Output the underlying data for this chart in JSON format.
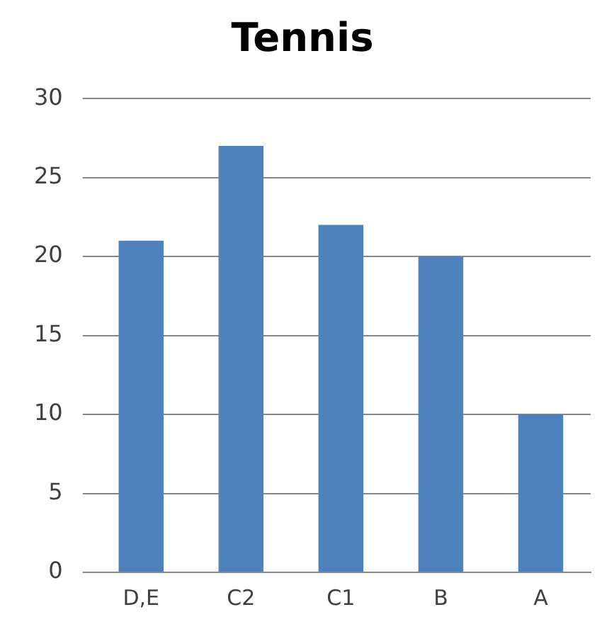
{
  "chart_data": {
    "type": "bar",
    "title": "Tennis",
    "categories": [
      "D,E",
      "C2",
      "C1",
      "B",
      "A"
    ],
    "values": [
      21,
      27,
      22,
      20,
      10
    ],
    "color": "#4f81bd",
    "ylim": [
      0,
      30
    ],
    "yticks": [
      0,
      5,
      10,
      15,
      20,
      25,
      30
    ],
    "grid": "y"
  }
}
